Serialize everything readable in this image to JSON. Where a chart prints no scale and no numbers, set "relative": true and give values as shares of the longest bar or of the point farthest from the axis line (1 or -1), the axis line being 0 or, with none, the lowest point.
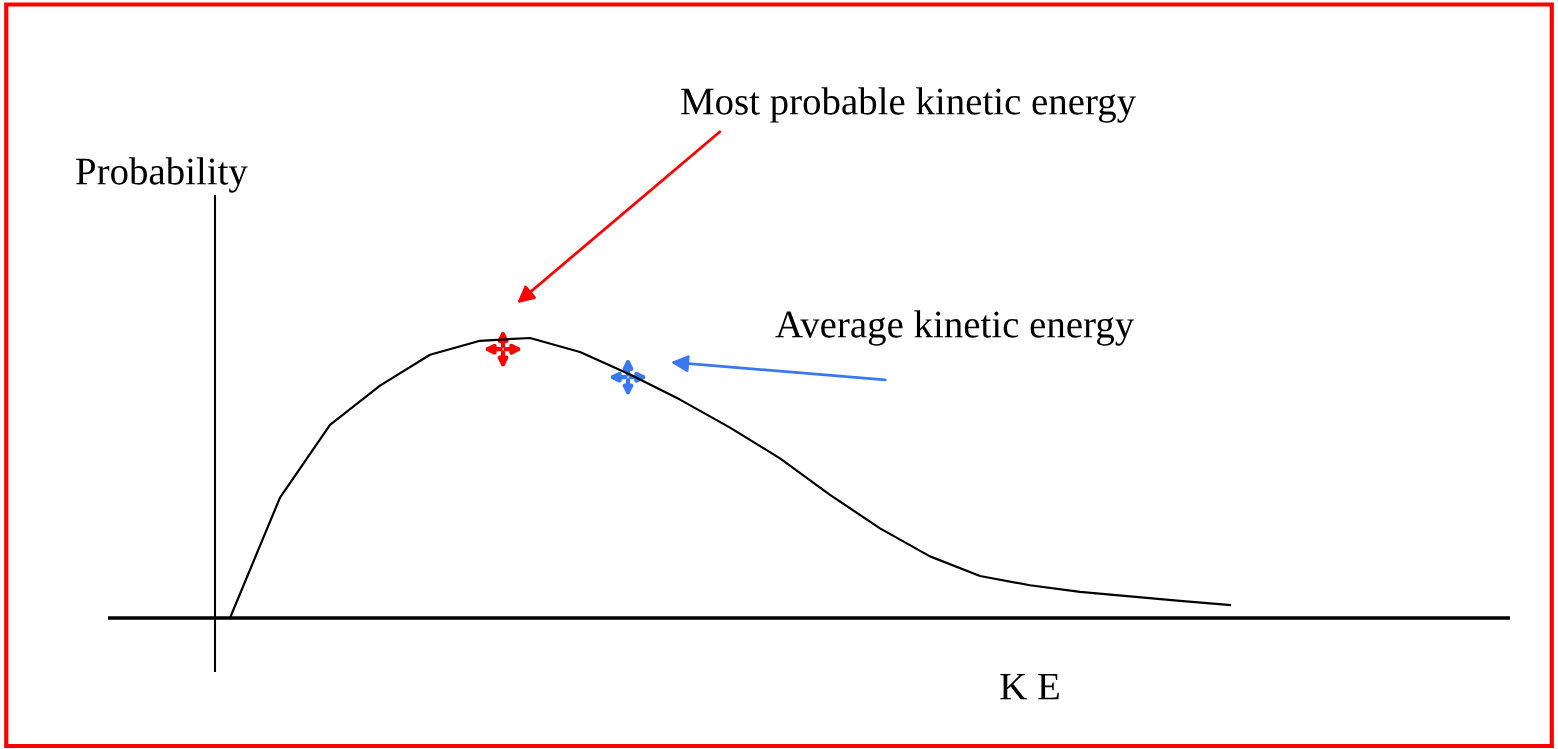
{
  "chart_data": {
    "type": "line",
    "relative": true,
    "xlabel": "K E",
    "ylabel": "Probability",
    "color": "#000000",
    "marker": "none",
    "line_style": "solid",
    "categories": [
      null,
      null,
      null,
      null,
      null,
      null,
      null,
      null,
      null,
      null,
      null,
      null,
      null,
      null,
      null,
      null,
      null,
      null,
      null,
      null,
      null
    ],
    "values": [
      0,
      0.43,
      0.69,
      0.83,
      0.94,
      0.99,
      1.0,
      0.95,
      0.87,
      0.78,
      0.68,
      0.57,
      0.44,
      0.32,
      0.22,
      0.15,
      0.117,
      0.093,
      0.077,
      0.061,
      0.046
    ],
    "annotations": [
      "Most probable kinetic energy",
      "Average kinetic energy"
    ]
  }
}
